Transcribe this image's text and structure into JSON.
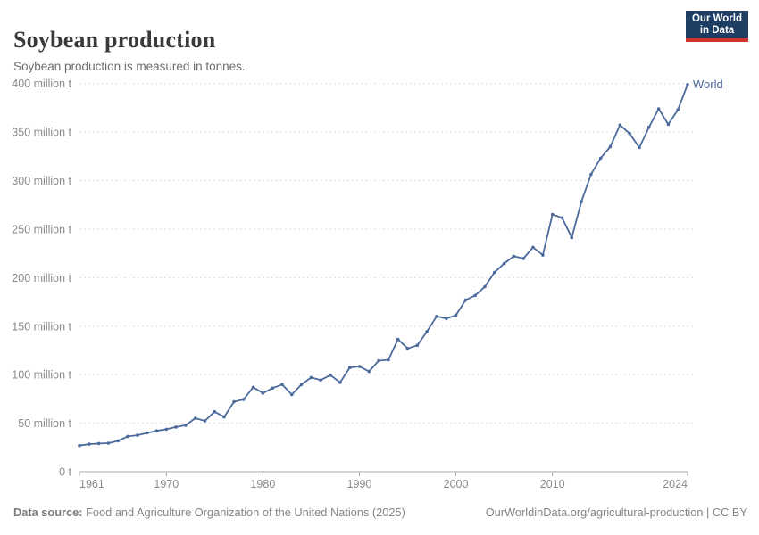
{
  "header": {
    "title": "Soybean production",
    "subtitle": "Soybean production is measured in tonnes.",
    "logo": {
      "line1": "Our World",
      "line2": "in Data"
    }
  },
  "footer": {
    "source_label": "Data source:",
    "source_text": "Food and Agriculture Organization of the United Nations (2025)",
    "rights": "OurWorldinData.org/agricultural-production | CC BY"
  },
  "colors": {
    "line": "#4C6A9C",
    "end_label": "#4C6A9C",
    "grid": "#dddddd",
    "axis": "#a8a8a8",
    "tick_label": "#8a8a8a",
    "logo_bg": "#1d3d63",
    "logo_red": "#d0342c"
  },
  "chart_data": {
    "type": "line",
    "title": "Soybean production",
    "subtitle": "Soybean production is measured in tonnes.",
    "unit": "tonnes",
    "grid": "horizontal dashed",
    "legend_position": "end-of-line label",
    "xlim": [
      1961,
      2024
    ],
    "ylim": [
      0,
      400000000
    ],
    "x_ticks": [
      1961,
      1970,
      1980,
      1990,
      2000,
      2010,
      2024
    ],
    "y_ticks": [
      {
        "value": 0,
        "label": "0 t"
      },
      {
        "value": 50,
        "label": "50 million t"
      },
      {
        "value": 100,
        "label": "100 million t"
      },
      {
        "value": 150,
        "label": "150 million t"
      },
      {
        "value": 200,
        "label": "200 million t"
      },
      {
        "value": 250,
        "label": "250 million t"
      },
      {
        "value": 300,
        "label": "300 million t"
      },
      {
        "value": 350,
        "label": "350 million t"
      },
      {
        "value": 400,
        "label": "400 million t"
      }
    ],
    "y_unit_of_values": "million tonnes",
    "x": [
      1961,
      1962,
      1963,
      1964,
      1965,
      1966,
      1967,
      1968,
      1969,
      1970,
      1971,
      1972,
      1973,
      1974,
      1975,
      1976,
      1977,
      1978,
      1979,
      1980,
      1981,
      1982,
      1983,
      1984,
      1985,
      1986,
      1987,
      1988,
      1989,
      1990,
      1991,
      1992,
      1993,
      1994,
      1995,
      1996,
      1997,
      1998,
      1999,
      2000,
      2001,
      2002,
      2003,
      2004,
      2005,
      2006,
      2007,
      2008,
      2009,
      2010,
      2011,
      2012,
      2013,
      2014,
      2015,
      2016,
      2017,
      2018,
      2019,
      2020,
      2021,
      2022,
      2023,
      2024
    ],
    "series": [
      {
        "name": "World",
        "end_label": "World",
        "values": [
          26.9,
          28.4,
          29.0,
          29.4,
          31.8,
          36.4,
          37.6,
          40.0,
          42.1,
          43.7,
          46.0,
          47.9,
          55.1,
          52.4,
          61.8,
          56.4,
          72.0,
          74.5,
          87.0,
          81.0,
          86.1,
          89.9,
          79.5,
          89.9,
          97.0,
          94.4,
          99.5,
          92.0,
          107.3,
          108.4,
          103.3,
          114.4,
          115.2,
          136.5,
          127.0,
          130.2,
          144.4,
          160.1,
          157.8,
          161.3,
          176.8,
          181.7,
          190.7,
          205.5,
          214.6,
          222.0,
          219.7,
          231.2,
          223.2,
          265.1,
          261.6,
          241.2,
          278.3,
          306.5,
          323.2,
          334.9,
          357.3,
          348.5,
          334.0,
          355.0,
          374.0,
          358.0,
          373.0,
          399.0
        ]
      }
    ]
  }
}
